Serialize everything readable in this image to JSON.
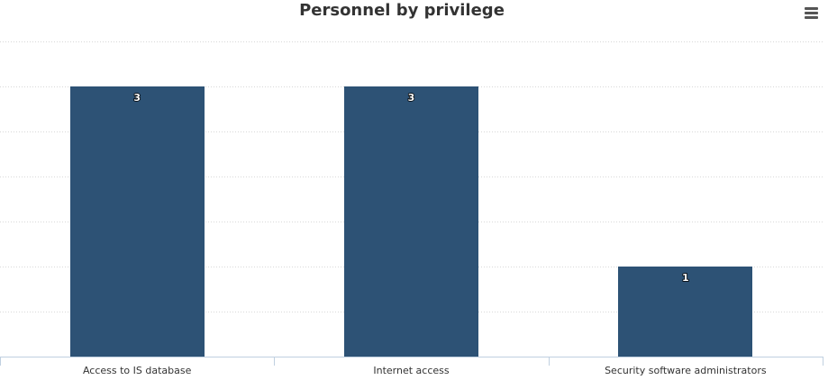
{
  "chart_data": {
    "type": "bar",
    "title": "Personnel by privilege",
    "categories": [
      "Access to IS database",
      "Internet access",
      "Security software administrators"
    ],
    "values": [
      3,
      3,
      1
    ],
    "ylim": [
      0,
      3.5
    ],
    "ytick_step": 0.5,
    "grid": true,
    "grid_style": "dotted",
    "legend": false,
    "bar_color": "#2d5275",
    "data_label_color": "#ffffff"
  },
  "toolbar": {
    "menu_icon": "hamburger-menu-icon"
  }
}
